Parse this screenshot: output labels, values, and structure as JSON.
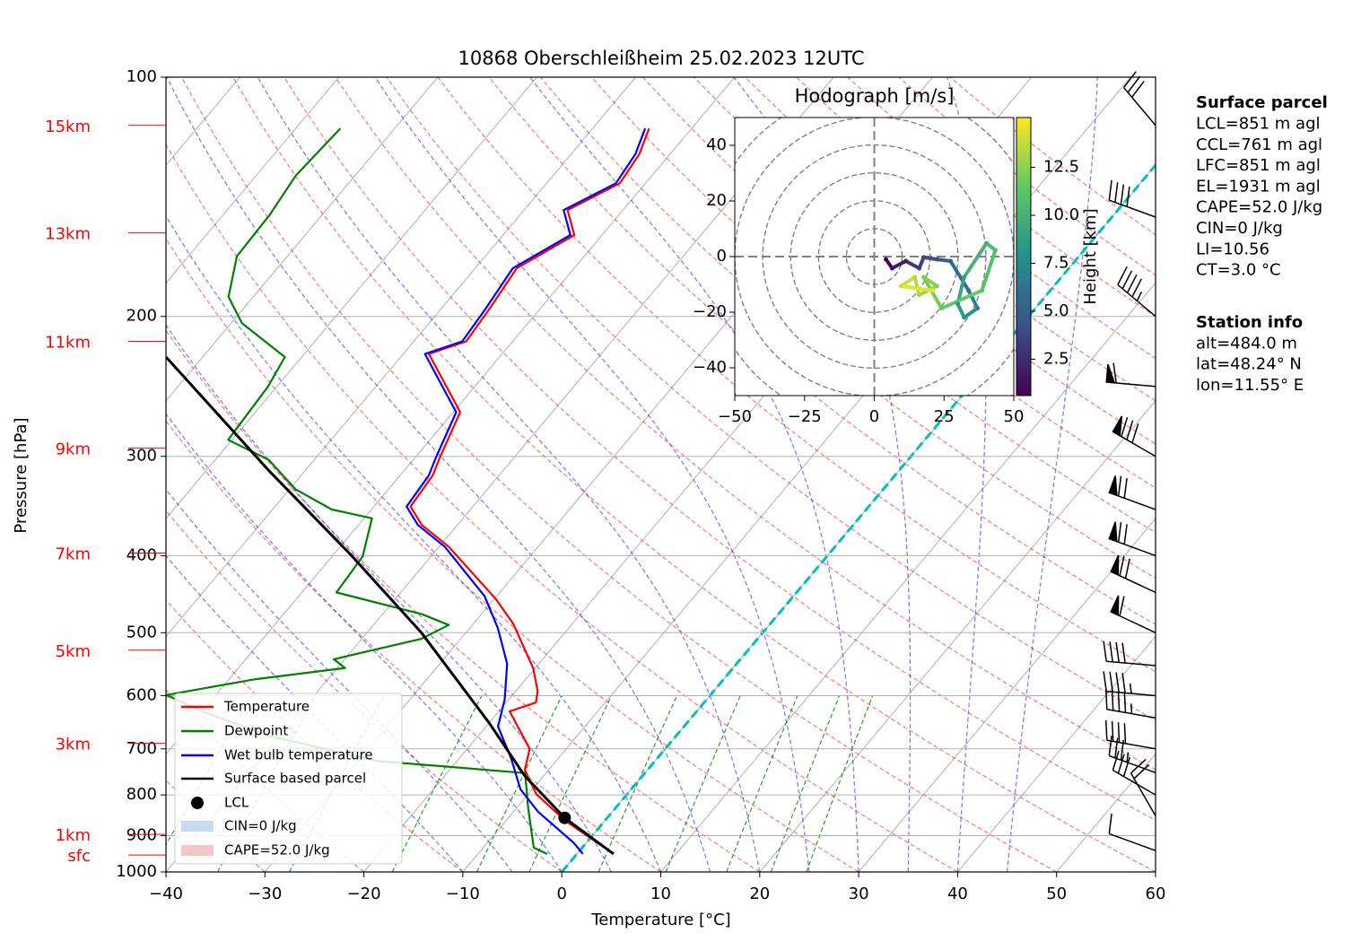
{
  "chart_data": [
    {
      "type": "skewt",
      "title": "10868 Oberschleißheim 25.02.2023 12UTC",
      "x_label": "Temperature [°C]",
      "y_label": "Pressure [hPa]",
      "xlim": [
        -40,
        60
      ],
      "ylim": [
        1000,
        100
      ],
      "log_y": true,
      "xticks": [
        {
          "value": -40,
          "label": "−40"
        },
        {
          "value": -30,
          "label": "−30"
        },
        {
          "value": -20,
          "label": "−20"
        },
        {
          "value": -10,
          "label": "−10"
        },
        0,
        10,
        20,
        30,
        40,
        50,
        60
      ],
      "yticks": [
        100,
        200,
        300,
        400,
        500,
        600,
        700,
        800,
        900,
        1000
      ],
      "series": [
        {
          "name": "Temperature",
          "color": "#ff0000",
          "pressure": [
            949,
            862,
            798,
            744,
            700,
            628,
            612,
            592,
            554,
            487,
            453,
            390,
            366,
            347,
            317,
            301,
            264,
            223,
            215,
            196,
            174,
            158,
            147,
            136,
            125,
            116
          ],
          "values": [
            3.7,
            -4.0,
            -9.2,
            -12.4,
            -13.7,
            -18.9,
            -17.0,
            -17.8,
            -20.2,
            -26.0,
            -29.9,
            -39.0,
            -43.6,
            -46.3,
            -46.7,
            -47.5,
            -49.3,
            -57.4,
            -54.7,
            -55.1,
            -55.8,
            -52.8,
            -55.6,
            -52.6,
            -53.1,
            -54.3
          ]
        },
        {
          "name": "Dewpoint",
          "color": "#008000",
          "pressure": [
            949,
            932,
            829,
            751,
            738,
            725,
            674,
            631,
            599,
            572,
            554,
            540,
            509,
            489,
            474,
            445,
            401,
            359,
            350,
            330,
            303,
            286,
            245,
            225,
            204,
            189,
            168,
            149,
            133,
            116
          ],
          "values": [
            -3.0,
            -4.9,
            -8.9,
            -12.1,
            -19.9,
            -28.1,
            -41.2,
            -49.4,
            -55.0,
            -47.3,
            -39.2,
            -41.1,
            -34.0,
            -32.4,
            -36.0,
            -46.5,
            -46.9,
            -49.2,
            -54.0,
            -59.4,
            -64.6,
            -70.4,
            -70.9,
            -71.7,
            -78.9,
            -82.5,
            -85.1,
            -85.3,
            -86.0,
            -85.5
          ]
        },
        {
          "name": "Wet bulb temperature",
          "color": "#0000ff",
          "pressure": [
            949,
            920,
            840,
            787,
            719,
            656,
            607,
            547,
            493,
            450,
            390,
            366,
            347,
            317,
            301,
            264,
            223,
            215,
            196,
            174,
            158,
            147,
            136,
            125,
            116
          ],
          "values": [
            0.6,
            -1.2,
            -7.5,
            -11.2,
            -14.8,
            -18.8,
            -20.4,
            -23.2,
            -27.2,
            -31.2,
            -39.4,
            -44.0,
            -46.7,
            -47.1,
            -47.9,
            -49.7,
            -57.8,
            -55.1,
            -55.5,
            -56.2,
            -53.2,
            -56.0,
            -53.0,
            -53.5,
            -54.7
          ]
        },
        {
          "name": "Surface based parcel",
          "color": "#000000",
          "pressure": [
            949,
            855,
            757,
            648,
            500,
            398,
            313,
            225
          ],
          "values": [
            3.7,
            -4.3,
            -11.9,
            -20.1,
            -34.5,
            -48.4,
            -63.6,
            -83.7
          ]
        }
      ],
      "lcl": {
        "name": "LCL",
        "pressure": 855,
        "temperature": -4.3
      },
      "shading": [
        {
          "name": "CIN=0 J/kg",
          "color": "#c6dbef"
        },
        {
          "name": "CAPE=52.0 J/kg",
          "color": "#f4c7c7"
        }
      ],
      "height_labels": {
        "labels": [
          "15km",
          "13km",
          "11km",
          "9km",
          "7km",
          "5km",
          "3km",
          "1km",
          "sfc"
        ],
        "pressure": [
          115,
          157,
          215,
          293,
          397,
          526,
          689,
          897,
          952
        ]
      },
      "wind": {
        "pressure": [
          115,
          150,
          200,
          245,
          300,
          350,
          400,
          445,
          500,
          550,
          600,
          640,
          700,
          750,
          800,
          850,
          940
        ],
        "speed": [
          30,
          40,
          45,
          60,
          80,
          70,
          70,
          70,
          60,
          40,
          45,
          45,
          40,
          35,
          30,
          20,
          10
        ],
        "direction": [
          320,
          290,
          310,
          275,
          300,
          290,
          290,
          295,
          295,
          275,
          275,
          280,
          280,
          290,
          300,
          330,
          290
        ]
      }
    },
    {
      "type": "hodograph",
      "title": "Hodograph [m/s]",
      "colorbar_label": "Height [km]",
      "xlim": [
        -50,
        50
      ],
      "ylim": [
        -50,
        50
      ],
      "zlim": [
        0.6,
        15.1
      ],
      "xticks": [
        {
          "value": -50,
          "label": "−50"
        },
        {
          "value": -25,
          "label": "−25"
        },
        0,
        25,
        50
      ],
      "yticks": [
        {
          "value": -40,
          "label": "−40"
        },
        {
          "value": -20,
          "label": "−20"
        },
        0,
        20,
        40
      ],
      "zticks": [
        2.5,
        {
          "value": 5,
          "label": "5.0"
        },
        7.5,
        {
          "value": 10,
          "label": "10.0"
        },
        12.5
      ],
      "u": [
        4.2,
        6.4,
        11.3,
        16.1,
        17.7,
        22.5,
        27.3,
        33.8,
        37.0,
        32.2,
        29.9,
        32.2,
        40.2,
        43.4,
        38.6,
        24.1,
        17.7,
        22.5,
        16.1,
        14.5,
        9.6,
        20.9
      ],
      "v": [
        -1.0,
        -4.2,
        -1.6,
        -4.2,
        -0.3,
        -1.0,
        -1.6,
        -12.2,
        -18.6,
        -21.9,
        -17.0,
        -7.4,
        4.8,
        2.3,
        -12.2,
        -18.6,
        -7.4,
        -10.6,
        -13.8,
        -7.4,
        -10.6,
        -12.2
      ],
      "height": [
        0.6,
        1,
        2,
        3,
        3.5,
        4,
        5,
        6,
        7,
        8,
        8.5,
        9,
        10,
        10.5,
        11,
        11.5,
        12,
        12.5,
        13,
        13.5,
        14,
        14.5
      ]
    }
  ],
  "info_panel": [
    {
      "title": "Surface parcel",
      "lines": [
        "LCL=851 m agl",
        "CCL=761 m agl",
        "LFC=851 m agl",
        "EL=1931 m agl",
        "CAPE=52.0 J/kg",
        "CIN=0 J/kg",
        "LI=10.56",
        "CT=3.0 °C"
      ]
    },
    {
      "title": "Station info",
      "lines": [
        "alt=484.0 m",
        "lat=48.24° N",
        "lon=11.55° E"
      ]
    }
  ]
}
